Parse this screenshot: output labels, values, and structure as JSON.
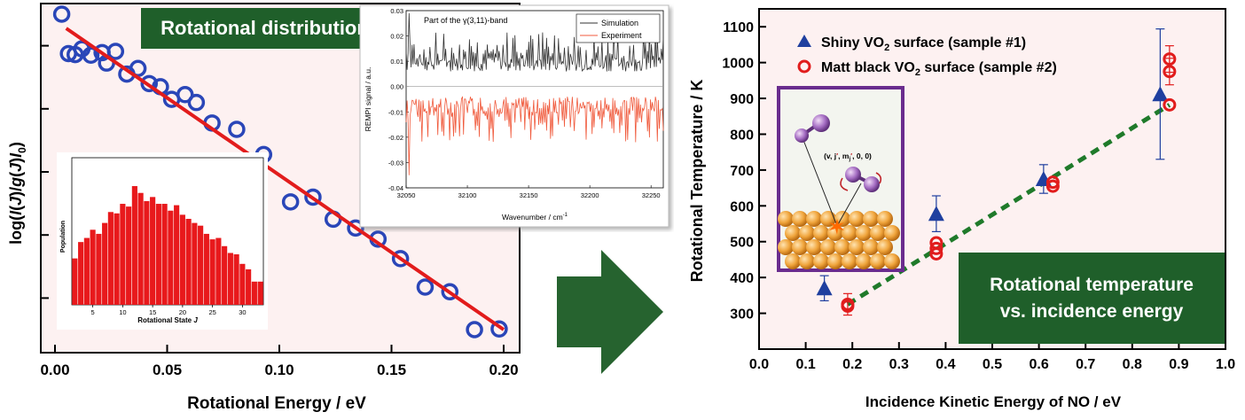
{
  "left_panel": {
    "chart_data": {
      "type": "scatter",
      "xlabel": "Rotational Energy / eV",
      "ylabel_parts": [
        "log(",
        "I",
        "(",
        "J",
        ")/",
        "g",
        "(",
        "J",
        ")",
        "I",
        "0",
        ")"
      ],
      "xlim": [
        0.0,
        0.2
      ],
      "ylim": [
        0.0,
        1.0
      ],
      "x_ticks": [
        "0.00",
        "0.05",
        "0.10",
        "0.15",
        "0.20"
      ],
      "x_tick_values": [
        0.0,
        0.05,
        0.1,
        0.15,
        0.2
      ],
      "y_ticks_unlabeled": [
        0.1,
        0.3,
        0.5,
        0.7,
        0.9
      ],
      "points": [
        {
          "x": 0.003,
          "y": 1.0
        },
        {
          "x": 0.006,
          "y": 0.875
        },
        {
          "x": 0.009,
          "y": 0.872
        },
        {
          "x": 0.012,
          "y": 0.89
        },
        {
          "x": 0.016,
          "y": 0.87
        },
        {
          "x": 0.021,
          "y": 0.878
        },
        {
          "x": 0.023,
          "y": 0.845
        },
        {
          "x": 0.027,
          "y": 0.882
        },
        {
          "x": 0.032,
          "y": 0.81
        },
        {
          "x": 0.037,
          "y": 0.828
        },
        {
          "x": 0.042,
          "y": 0.78
        },
        {
          "x": 0.047,
          "y": 0.77
        },
        {
          "x": 0.052,
          "y": 0.73
        },
        {
          "x": 0.058,
          "y": 0.745
        },
        {
          "x": 0.063,
          "y": 0.72
        },
        {
          "x": 0.07,
          "y": 0.655
        },
        {
          "x": 0.081,
          "y": 0.635
        },
        {
          "x": 0.093,
          "y": 0.555
        },
        {
          "x": 0.105,
          "y": 0.405
        },
        {
          "x": 0.115,
          "y": 0.42
        },
        {
          "x": 0.124,
          "y": 0.35
        },
        {
          "x": 0.134,
          "y": 0.322
        },
        {
          "x": 0.144,
          "y": 0.287
        },
        {
          "x": 0.154,
          "y": 0.225
        },
        {
          "x": 0.165,
          "y": 0.135
        },
        {
          "x": 0.176,
          "y": 0.12
        },
        {
          "x": 0.187,
          "y": 0.0
        },
        {
          "x": 0.198,
          "y": 0.002
        }
      ],
      "fit_line": {
        "x": [
          0.005,
          0.2
        ],
        "y": [
          0.955,
          0.0
        ]
      },
      "title_box": "Rotational distribution"
    },
    "inset_histogram": {
      "type": "bar",
      "xlabel_prefix": "Rotational State ",
      "xlabel_var": "J",
      "ylabel": "Population",
      "x_ticks": [
        "5",
        "10",
        "15",
        "20",
        "25",
        "30"
      ],
      "x_tick_values": [
        5,
        10,
        15,
        20,
        25,
        30
      ],
      "categories": [
        2,
        3,
        4,
        5,
        6,
        7,
        8,
        9,
        10,
        11,
        12,
        13,
        14,
        15,
        16,
        17,
        18,
        19,
        20,
        21,
        22,
        23,
        24,
        25,
        26,
        27,
        28,
        29,
        30,
        31,
        32,
        33
      ],
      "values": [
        0.34,
        0.46,
        0.49,
        0.55,
        0.52,
        0.6,
        0.68,
        0.67,
        0.74,
        0.72,
        0.87,
        0.82,
        0.76,
        0.79,
        0.74,
        0.74,
        0.69,
        0.73,
        0.66,
        0.63,
        0.6,
        0.58,
        0.52,
        0.48,
        0.49,
        0.43,
        0.38,
        0.37,
        0.3,
        0.26,
        0.17,
        0.17
      ],
      "color": "#e8191c"
    },
    "spectrum_inset": {
      "type": "line",
      "title": "Part of the γ(3,11)-band",
      "xlabel": "Wavenumber / cm",
      "xlabel_sup": "-1",
      "ylabel": "REMPI signal / a.u.",
      "xlim": [
        32050,
        32260
      ],
      "ylim": [
        -0.04,
        0.03
      ],
      "x_ticks": [
        "32050",
        "32100",
        "32150",
        "32200",
        "32250"
      ],
      "x_tick_values": [
        32050,
        32100,
        32150,
        32200,
        32250
      ],
      "y_ticks": [
        "0.03",
        "0.02",
        "0.01",
        "0.00",
        "-0.01",
        "-0.02",
        "-0.03",
        "-0.04"
      ],
      "y_tick_values": [
        0.03,
        0.02,
        0.01,
        0.0,
        -0.01,
        -0.02,
        -0.03,
        -0.04
      ],
      "series": [
        {
          "name": "Simulation",
          "color": "#333333"
        },
        {
          "name": "Experiment",
          "color": "#f05a3c"
        }
      ]
    }
  },
  "arrow": {
    "color": "#26632f"
  },
  "right_panel": {
    "chart_data": {
      "type": "scatter",
      "xlabel": "Incidence Kinetic Energy of NO / eV",
      "ylabel": "Rotational Temperature / K",
      "xlim": [
        0.0,
        1.0
      ],
      "ylim": [
        200,
        1150
      ],
      "x_ticks": [
        "0.0",
        "0.1",
        "0.2",
        "0.3",
        "0.4",
        "0.5",
        "0.6",
        "0.7",
        "0.8",
        "0.9",
        "1.0"
      ],
      "x_tick_values": [
        0.0,
        0.1,
        0.2,
        0.3,
        0.4,
        0.5,
        0.6,
        0.7,
        0.8,
        0.9,
        1.0
      ],
      "y_ticks": [
        "300",
        "400",
        "500",
        "600",
        "700",
        "800",
        "900",
        "1000",
        "1100"
      ],
      "y_tick_values": [
        300,
        400,
        500,
        600,
        700,
        800,
        900,
        1000,
        1100
      ],
      "series": [
        {
          "legend_prefix": "Shiny VO",
          "legend_sub": "2",
          "legend_suffix": " surface (sample #1)",
          "marker": "triangle",
          "color": "#1f3f9f",
          "points": [
            {
              "x": 0.14,
              "y": 370,
              "err": 35
            },
            {
              "x": 0.38,
              "y": 578,
              "err": 50
            },
            {
              "x": 0.61,
              "y": 675,
              "err": 40
            },
            {
              "x": 0.86,
              "y": 912,
              "err": 182
            }
          ]
        },
        {
          "legend_prefix": "Matt black VO",
          "legend_sub": "2",
          "legend_suffix": " surface (sample #2)",
          "marker": "circle",
          "color": "#e11d1d",
          "points": [
            {
              "x": 0.19,
              "y": 325,
              "err": 30
            },
            {
              "x": 0.19,
              "y": 320,
              "err": 0
            },
            {
              "x": 0.38,
              "y": 497,
              "err": 0
            },
            {
              "x": 0.38,
              "y": 481,
              "err": 0
            },
            {
              "x": 0.38,
              "y": 466,
              "err": 0
            },
            {
              "x": 0.63,
              "y": 666,
              "err": 0
            },
            {
              "x": 0.63,
              "y": 655,
              "err": 0
            },
            {
              "x": 0.88,
              "y": 1010,
              "err": 37
            },
            {
              "x": 0.88,
              "y": 975,
              "err": 37
            },
            {
              "x": 0.88,
              "y": 882,
              "err": 0
            }
          ]
        }
      ],
      "trend_line": {
        "x": [
          0.19,
          0.88
        ],
        "y": [
          325,
          882
        ],
        "color": "#1f7a2a"
      },
      "annotation_lines": [
        "Rotational temperature",
        "vs. incidence energy"
      ],
      "scattering_inset": {
        "label_prefix": "(v, j",
        "label_mid": ", m",
        "label_sub": "j",
        "label_suffix": ", 0, 0)"
      }
    }
  },
  "colors": {
    "plot_bg": "#fdf1f1",
    "green_box": "#1f5f2a",
    "circle_blue": "#2a46b8",
    "fit_red": "#e21c1c",
    "inset_frame": "#6a2c8e"
  }
}
